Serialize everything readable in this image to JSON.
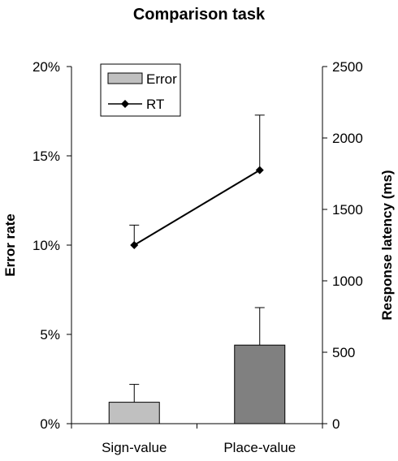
{
  "chart_data": {
    "type": "bar",
    "title": "Comparison task",
    "categories": [
      "Sign-value",
      "Place-value"
    ],
    "left_axis": {
      "label": "Error rate",
      "ylim": [
        0,
        20
      ],
      "ticks": [
        0,
        5,
        10,
        15,
        20
      ],
      "tick_labels": [
        "0%",
        "5%",
        "10%",
        "15%",
        "20%"
      ]
    },
    "right_axis": {
      "label": "Response latency (ms)",
      "ylim": [
        0,
        2500
      ],
      "ticks": [
        0,
        500,
        1000,
        1500,
        2000,
        2500
      ],
      "tick_labels": [
        "0",
        "500",
        "1000",
        "1500",
        "2000",
        "2500"
      ]
    },
    "series": [
      {
        "name": "Error",
        "kind": "bar",
        "axis": "left",
        "values": [
          1.2,
          4.4
        ],
        "error_upper": [
          2.2,
          6.5
        ],
        "bar_colors": [
          "#c0c0c0",
          "#808080"
        ]
      },
      {
        "name": "RT",
        "kind": "line",
        "axis": "right",
        "marker": "diamond",
        "values": [
          1250,
          1775
        ],
        "error_upper": [
          1390,
          2160
        ]
      }
    ],
    "legend": {
      "placement": "top-left",
      "items": [
        "Error",
        "RT"
      ]
    },
    "grid": false
  }
}
